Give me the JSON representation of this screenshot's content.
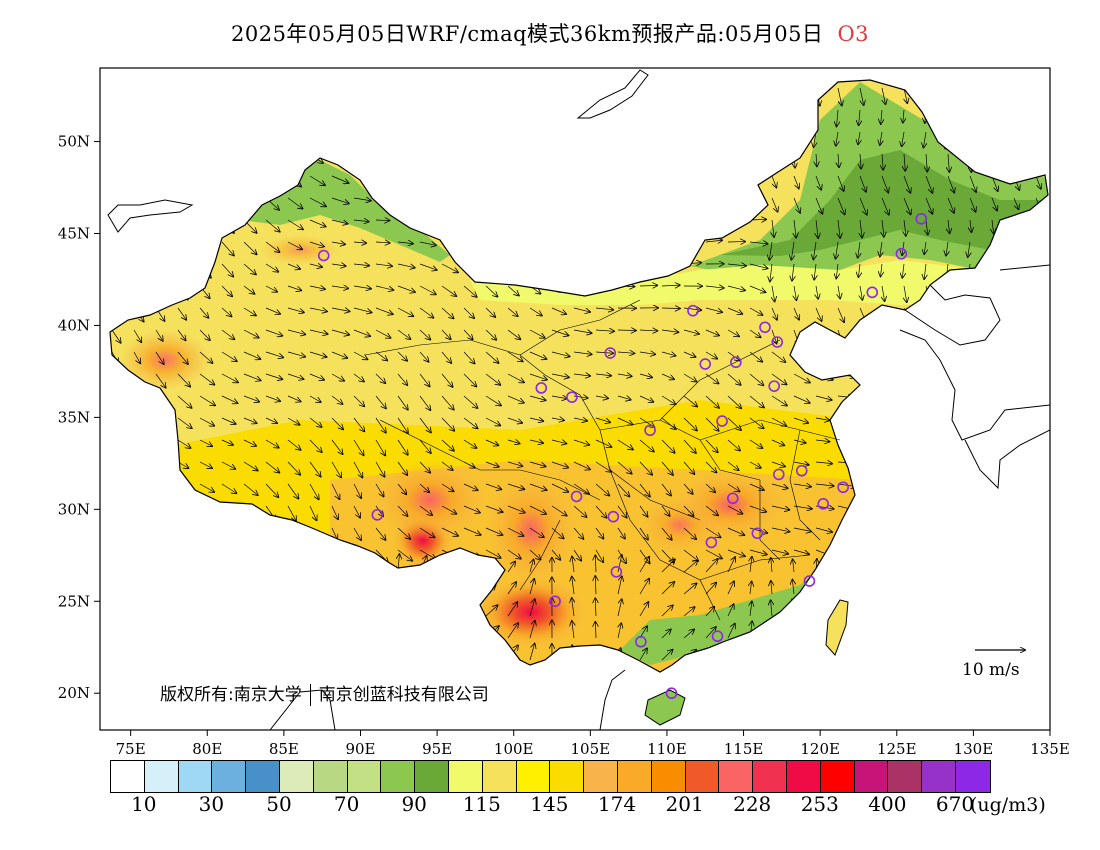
{
  "title": "2025年05月05日WRF/cmaq模式36km预报产品:05月05日",
  "species": "O3",
  "map": {
    "lon_range": [
      73,
      135
    ],
    "lat_range": [
      18,
      54
    ],
    "lon_ticks": [
      "75E",
      "80E",
      "85E",
      "90E",
      "95E",
      "100E",
      "105E",
      "110E",
      "115E",
      "120E",
      "125E",
      "130E",
      "135E"
    ],
    "lat_ticks": [
      "20N",
      "25N",
      "30N",
      "35N",
      "40N",
      "45N",
      "50N"
    ],
    "hotspots": [
      {
        "lon": 100.5,
        "lat": 23.5,
        "level": "very-high"
      },
      {
        "lon": 94.0,
        "lat": 28.0,
        "level": "very-high"
      },
      {
        "lon": 94.0,
        "lat": 30.5,
        "level": "high"
      },
      {
        "lon": 101.5,
        "lat": 27.5,
        "level": "high"
      },
      {
        "lon": 115.0,
        "lat": 30.0,
        "level": "high"
      },
      {
        "lon": 77.0,
        "lat": 38.5,
        "level": "high"
      },
      {
        "lon": 111.5,
        "lat": 28.5,
        "level": "high"
      }
    ],
    "stations": [
      [
        87.6,
        43.8
      ],
      [
        126.6,
        45.8
      ],
      [
        125.3,
        43.9
      ],
      [
        123.4,
        41.8
      ],
      [
        111.7,
        40.8
      ],
      [
        116.4,
        39.9
      ],
      [
        117.2,
        39.1
      ],
      [
        106.3,
        38.5
      ],
      [
        112.5,
        37.9
      ],
      [
        114.5,
        38.0
      ],
      [
        101.8,
        36.6
      ],
      [
        103.8,
        36.1
      ],
      [
        117.0,
        36.7
      ],
      [
        108.9,
        34.3
      ],
      [
        113.6,
        34.8
      ],
      [
        117.3,
        31.9
      ],
      [
        118.8,
        32.1
      ],
      [
        121.5,
        31.2
      ],
      [
        120.2,
        30.3
      ],
      [
        114.3,
        30.6
      ],
      [
        104.1,
        30.7
      ],
      [
        106.5,
        29.6
      ],
      [
        91.1,
        29.7
      ],
      [
        112.9,
        28.2
      ],
      [
        115.9,
        28.7
      ],
      [
        106.7,
        26.6
      ],
      [
        102.7,
        25.0
      ],
      [
        119.3,
        26.1
      ],
      [
        108.3,
        22.8
      ],
      [
        113.3,
        23.1
      ],
      [
        110.3,
        20.0
      ]
    ]
  },
  "copyright": {
    "label": "版权所有:",
    "org1": "南京大学",
    "org2": "南京创蓝科技有限公司"
  },
  "wind_reference": "10 m/s",
  "colorbar": {
    "colors": [
      "#ffffff",
      "#d6f0fa",
      "#9ed8f4",
      "#6cb0e0",
      "#4890c8",
      "#dcebb8",
      "#b8d884",
      "#c4e084",
      "#8cc850",
      "#6aa838",
      "#f0fa6a",
      "#f5e15c",
      "#fff000",
      "#fadc00",
      "#f8b44a",
      "#f8aa28",
      "#fa8c00",
      "#f05a28",
      "#fa6464",
      "#f03250",
      "#f00a46",
      "#ff0000",
      "#c81478",
      "#aa3264",
      "#9632c8",
      "#8c28e6"
    ],
    "labels": [
      "10",
      "30",
      "50",
      "70",
      "90",
      "115",
      "145",
      "174",
      "201",
      "228",
      "253",
      "400",
      "670"
    ],
    "unit": "(ug/m3)"
  }
}
